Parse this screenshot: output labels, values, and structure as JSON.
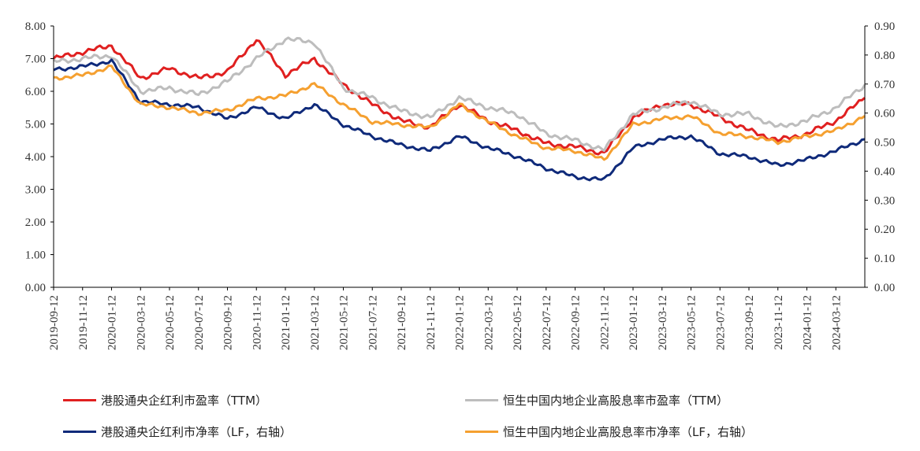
{
  "chart_data": {
    "type": "line",
    "x": [
      "2019-09-12",
      "2019-11-12",
      "2020-01-12",
      "2020-03-12",
      "2020-05-12",
      "2020-07-12",
      "2020-09-12",
      "2020-11-12",
      "2021-01-12",
      "2021-03-12",
      "2021-05-12",
      "2021-07-12",
      "2021-09-12",
      "2021-11-12",
      "2022-01-12",
      "2022-03-12",
      "2022-05-12",
      "2022-07-12",
      "2022-09-12",
      "2022-11-12",
      "2023-01-12",
      "2023-03-12",
      "2023-05-12",
      "2023-07-12",
      "2023-09-12",
      "2023-11-12",
      "2024-01-12",
      "2024-03-12",
      "2024-04-30"
    ],
    "tick_labels": [
      "2019-09-12",
      "2019-11-12",
      "2020-01-12",
      "2020-03-12",
      "2020-05-12",
      "2020-07-12",
      "2020-09-12",
      "2020-11-12",
      "2021-01-12",
      "2021-03-12",
      "2021-05-12",
      "2021-07-12",
      "2021-09-12",
      "2021-11-12",
      "2022-01-12",
      "2022-03-12",
      "2022-05-12",
      "2022-07-12",
      "2022-09-12",
      "2022-11-12",
      "2023-01-12",
      "2023-03-12",
      "2023-05-12",
      "2023-07-12",
      "2023-09-12",
      "2023-11-12",
      "2024-01-12",
      "2024-03-12"
    ],
    "left_axis": {
      "ylim": [
        0,
        8
      ],
      "ticks": [
        "0.00",
        "1.00",
        "2.00",
        "3.00",
        "4.00",
        "5.00",
        "6.00",
        "7.00",
        "8.00"
      ]
    },
    "right_axis": {
      "ylim": [
        0,
        0.9
      ],
      "ticks": [
        "0.00",
        "0.10",
        "0.20",
        "0.30",
        "0.40",
        "0.50",
        "0.60",
        "0.70",
        "0.80",
        "0.90"
      ]
    },
    "series": [
      {
        "name": "港股通央企红利市盈率（TTM）",
        "axis": "left",
        "color": "#e02020",
        "values": [
          7.0,
          7.2,
          7.4,
          6.4,
          6.7,
          6.4,
          6.6,
          7.6,
          6.5,
          7.0,
          6.2,
          5.6,
          5.1,
          4.9,
          5.6,
          5.1,
          4.8,
          4.4,
          4.3,
          4.1,
          5.2,
          5.6,
          5.6,
          5.2,
          4.8,
          4.5,
          4.7,
          5.1,
          5.8
        ]
      },
      {
        "name": "恒生中国内地企业高股息率市盈率（TTM）",
        "axis": "left",
        "color": "#bdbdbd",
        "values": [
          6.9,
          7.0,
          7.1,
          6.0,
          6.1,
          5.9,
          6.3,
          7.0,
          7.6,
          7.5,
          6.1,
          5.8,
          5.4,
          5.2,
          5.8,
          5.5,
          5.3,
          4.7,
          4.5,
          4.2,
          5.3,
          5.5,
          5.7,
          5.3,
          5.3,
          4.9,
          5.1,
          5.5,
          6.2
        ]
      },
      {
        "name": "港股通央企红利市净率（LF，右轴）",
        "axis": "right",
        "color": "#0f2a7a",
        "values": [
          0.75,
          0.76,
          0.78,
          0.64,
          0.63,
          0.62,
          0.58,
          0.62,
          0.58,
          0.63,
          0.56,
          0.52,
          0.49,
          0.47,
          0.52,
          0.48,
          0.45,
          0.41,
          0.38,
          0.37,
          0.48,
          0.51,
          0.52,
          0.46,
          0.45,
          0.42,
          0.44,
          0.47,
          0.51
        ]
      },
      {
        "name": "恒生中国内地企业高股息率市净率（LF，右轴）",
        "axis": "right",
        "color": "#f5a030",
        "values": [
          0.72,
          0.73,
          0.76,
          0.63,
          0.62,
          0.6,
          0.61,
          0.65,
          0.66,
          0.7,
          0.63,
          0.57,
          0.56,
          0.55,
          0.63,
          0.57,
          0.52,
          0.48,
          0.47,
          0.44,
          0.56,
          0.58,
          0.59,
          0.53,
          0.52,
          0.5,
          0.52,
          0.54,
          0.59
        ]
      }
    ],
    "legend_position": "bottom",
    "grid": false,
    "title": "",
    "xlabel": "",
    "ylabel": ""
  },
  "legend": {
    "items": [
      {
        "label": "港股通央企红利市盈率（TTM）",
        "color": "#e02020"
      },
      {
        "label": "恒生中国内地企业高股息率市盈率（TTM）",
        "color": "#bdbdbd"
      },
      {
        "label": "港股通央企红利市净率（LF，右轴）",
        "color": "#0f2a7a"
      },
      {
        "label": "恒生中国内地企业高股息率市净率（LF，右轴）",
        "color": "#f5a030"
      }
    ]
  }
}
